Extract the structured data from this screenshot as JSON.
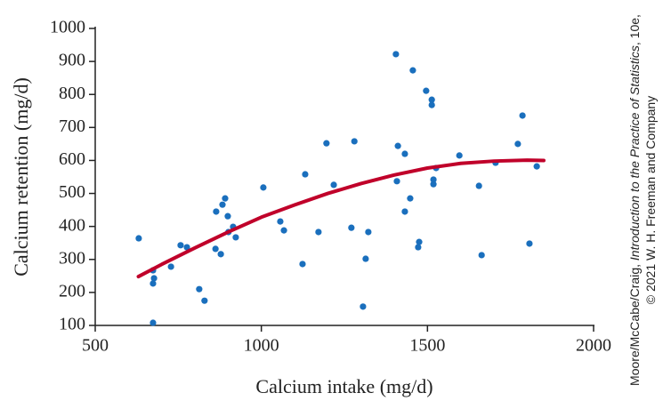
{
  "chart_data": {
    "type": "scatter",
    "x_label": "Calcium intake (mg/d)",
    "y_label": "Calcium retention (mg/d)",
    "xlim": [
      500,
      2000
    ],
    "xticks": [
      500,
      1000,
      1500,
      2000
    ],
    "ylim": [
      100,
      1000
    ],
    "yticks": [
      100,
      200,
      300,
      400,
      500,
      600,
      700,
      800,
      900,
      1000
    ],
    "series": [
      {
        "type": "scatter",
        "color": "#1a6fbd",
        "x": [
          631,
          674,
          677,
          674,
          674,
          728,
          757,
          776,
          813,
          829,
          864,
          862,
          878,
          883,
          891,
          899,
          901,
          915,
          923,
          1006,
          1057,
          1068,
          1124,
          1132,
          1172,
          1196,
          1218,
          1271,
          1280,
          1306,
          1314,
          1322,
          1405,
          1411,
          1408,
          1432,
          1432,
          1448,
          1456,
          1472,
          1475,
          1496,
          1513,
          1513,
          1518,
          1518,
          1526,
          1596,
          1655,
          1663,
          1705,
          1772,
          1786,
          1807,
          1829
        ],
        "values": [
          364,
          267,
          243,
          227,
          108,
          278,
          343,
          337,
          210,
          175,
          445,
          332,
          316,
          466,
          485,
          431,
          383,
          399,
          367,
          518,
          415,
          388,
          286,
          558,
          383,
          652,
          526,
          396,
          658,
          157,
          302,
          383,
          922,
          644,
          537,
          620,
          445,
          485,
          873,
          337,
          353,
          811,
          784,
          768,
          528,
          542,
          577,
          615,
          523,
          313,
          593,
          650,
          736,
          348,
          582
        ]
      },
      {
        "type": "line",
        "color": "#c0002a",
        "x": [
          630,
          700,
          800,
          900,
          1000,
          1100,
          1200,
          1300,
          1400,
          1500,
          1600,
          1700,
          1800,
          1850
        ],
        "values": [
          248,
          285,
          335,
          383,
          428,
          465,
          500,
          530,
          556,
          577,
          591,
          598,
          601,
          600
        ]
      }
    ],
    "credit": {
      "line1": [
        "Moore/McCabe/Craig, ",
        "Introduction to the Practice of Statistics",
        ", 10e,"
      ],
      "line2": "© 2021 W. H. Freeman and Company"
    }
  }
}
